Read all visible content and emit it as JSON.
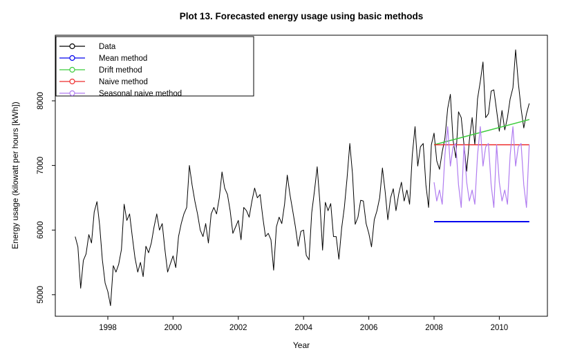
{
  "title": "Plot 13. Forecasted energy usage using basic methods",
  "chart_data": {
    "type": "line",
    "title": "Plot 13. Forecasted energy usage using basic methods",
    "xlabel": "Year",
    "ylabel": "Energy usage (kilowatt per hours [kWh])",
    "x_ticks": [
      1998,
      2000,
      2002,
      2004,
      2006,
      2008,
      2010
    ],
    "y_ticks": [
      5000,
      6000,
      7000,
      8000
    ],
    "xlim": [
      1996.4,
      2011.5
    ],
    "ylim": [
      4650,
      9020
    ],
    "grid": false,
    "legend_position": "top-left",
    "frequency": "monthly",
    "series": [
      {
        "id": "data",
        "name": "Data",
        "color": "#000000",
        "kind": "line",
        "start": 1997,
        "per_year": 12,
        "values": [
          5900,
          5740,
          5100,
          5530,
          5630,
          5930,
          5800,
          6280,
          6440,
          6070,
          5540,
          5180,
          5050,
          4830,
          5450,
          5350,
          5470,
          5700,
          6400,
          6150,
          6250,
          5900,
          5570,
          5350,
          5500,
          5280,
          5750,
          5650,
          5800,
          6050,
          6250,
          6000,
          6100,
          5700,
          5350,
          5480,
          5600,
          5420,
          5900,
          6100,
          6250,
          6350,
          7000,
          6700,
          6450,
          6250,
          6000,
          5900,
          6100,
          5800,
          6250,
          6350,
          6250,
          6500,
          6900,
          6650,
          6550,
          6300,
          5950,
          6050,
          6150,
          5850,
          6350,
          6300,
          6200,
          6450,
          6650,
          6500,
          6550,
          6200,
          5900,
          5950,
          5850,
          5380,
          6050,
          6200,
          6100,
          6400,
          6850,
          6550,
          6300,
          6050,
          5750,
          5980,
          6000,
          5610,
          5540,
          6270,
          6600,
          6980,
          6430,
          5690,
          6430,
          6300,
          6410,
          5900,
          5900,
          5550,
          6030,
          6350,
          6800,
          7340,
          6870,
          6090,
          6200,
          6460,
          6450,
          6100,
          5950,
          5740,
          6160,
          6300,
          6500,
          6960,
          6600,
          6160,
          6500,
          6640,
          6300,
          6560,
          6740,
          6450,
          6620,
          6400,
          7160,
          7600,
          6990,
          7290,
          7340,
          6700,
          6350,
          7320,
          7500,
          7070,
          6940,
          7210,
          7420,
          7880,
          8100,
          7390,
          7120,
          7830,
          7740,
          7320,
          6910,
          7390,
          7740,
          7320,
          8030,
          8300,
          8600,
          7740,
          7800,
          8150,
          8170,
          7850,
          7530,
          7850,
          7550,
          7740,
          8030,
          8200,
          8790,
          8280,
          7880,
          7580,
          7800,
          7960
        ]
      },
      {
        "id": "mean",
        "name": "Mean method",
        "color": "#0000EE",
        "kind": "flat",
        "value": 6130,
        "from": 2008.0,
        "to": 2010.92
      },
      {
        "id": "drift",
        "name": "Drift method",
        "color": "#3BCC3B",
        "kind": "trend",
        "from": 2008.0,
        "to": 2010.92,
        "start_value": 7320,
        "end_value": 7710
      },
      {
        "id": "naive",
        "name": "Naive method",
        "color": "#EE2C2C",
        "kind": "flat",
        "value": 7320,
        "from": 2008.0,
        "to": 2010.92
      },
      {
        "id": "snaive",
        "name": "Seasonal naive method",
        "color": "#B07CF0",
        "kind": "seasonal",
        "start": 2008,
        "per_year": 12,
        "repeats": 3,
        "pattern": [
          6740,
          6450,
          6620,
          6400,
          7160,
          7600,
          6990,
          7290,
          7340,
          6700,
          6350,
          7320
        ]
      }
    ],
    "legend_items": [
      {
        "label": "Data",
        "color": "#000000"
      },
      {
        "label": "Mean method",
        "color": "#0000EE"
      },
      {
        "label": "Drift method",
        "color": "#3BCC3B"
      },
      {
        "label": "Naive method",
        "color": "#EE2C2C"
      },
      {
        "label": "Seasonal naive method",
        "color": "#B07CF0"
      }
    ]
  }
}
